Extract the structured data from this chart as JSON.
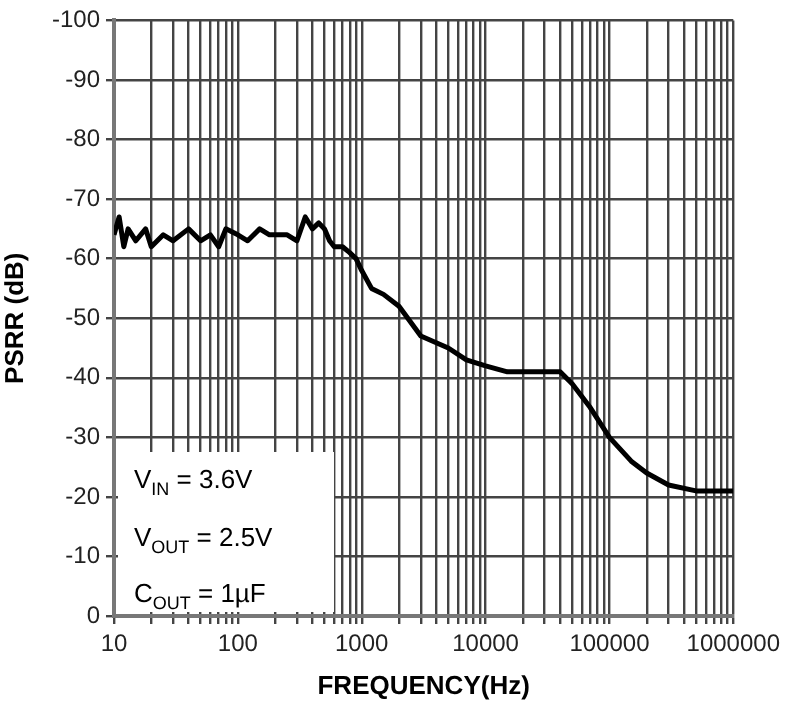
{
  "chart_data": {
    "type": "line",
    "xlabel": "FREQUENCY(Hz)",
    "ylabel": "PSRR (dB)",
    "log": "x",
    "grid": true,
    "marker": "none",
    "line_style": "solid",
    "xlim": [
      10,
      1000000
    ],
    "ylim": [
      0,
      -100
    ],
    "xticks": [
      10,
      {
        "value": 20,
        "label": null
      },
      {
        "value": 30,
        "label": null
      },
      {
        "value": 40,
        "label": null
      },
      {
        "value": 50,
        "label": null
      },
      {
        "value": 60,
        "label": null
      },
      {
        "value": 70,
        "label": null
      },
      {
        "value": 80,
        "label": null
      },
      {
        "value": 90,
        "label": null
      },
      100,
      {
        "value": 200,
        "label": null
      },
      {
        "value": 300,
        "label": null
      },
      {
        "value": 400,
        "label": null
      },
      {
        "value": 500,
        "label": null
      },
      {
        "value": 600,
        "label": null
      },
      {
        "value": 700,
        "label": null
      },
      {
        "value": 800,
        "label": null
      },
      {
        "value": 900,
        "label": null
      },
      1000,
      {
        "value": 2000,
        "label": null
      },
      {
        "value": 3000,
        "label": null
      },
      {
        "value": 4000,
        "label": null
      },
      {
        "value": 5000,
        "label": null
      },
      {
        "value": 6000,
        "label": null
      },
      {
        "value": 7000,
        "label": null
      },
      {
        "value": 8000,
        "label": null
      },
      {
        "value": 9000,
        "label": null
      },
      10000,
      {
        "value": 20000,
        "label": null
      },
      {
        "value": 30000,
        "label": null
      },
      {
        "value": 40000,
        "label": null
      },
      {
        "value": 50000,
        "label": null
      },
      {
        "value": 60000,
        "label": null
      },
      {
        "value": 70000,
        "label": null
      },
      {
        "value": 80000,
        "label": null
      },
      {
        "value": 90000,
        "label": null
      },
      100000,
      {
        "value": 200000,
        "label": null
      },
      {
        "value": 300000,
        "label": null
      },
      {
        "value": 400000,
        "label": null
      },
      {
        "value": 500000,
        "label": null
      },
      {
        "value": 600000,
        "label": null
      },
      {
        "value": 700000,
        "label": null
      },
      {
        "value": 800000,
        "label": null
      },
      {
        "value": 900000,
        "label": null
      },
      1000000
    ],
    "yticks": [
      -100,
      -90,
      -80,
      -70,
      -60,
      -50,
      -40,
      -30,
      -20,
      -10,
      0
    ],
    "x": [
      10,
      11,
      12,
      13,
      15,
      18,
      20,
      25,
      30,
      40,
      50,
      60,
      70,
      80,
      100,
      120,
      150,
      180,
      200,
      250,
      300,
      350,
      400,
      450,
      500,
      550,
      600,
      700,
      800,
      900,
      1000,
      1200,
      1500,
      2000,
      3000,
      5000,
      7000,
      10000,
      15000,
      20000,
      30000,
      40000,
      50000,
      70000,
      100000,
      150000,
      200000,
      300000,
      500000,
      1000000
    ],
    "series": [
      {
        "color": "#000000",
        "values": [
          -64,
          -67,
          -62,
          -65,
          -63,
          -65,
          -62,
          -64,
          -63,
          -65,
          -63,
          -64,
          -62,
          -65,
          -64,
          -63,
          -65,
          -64,
          -64,
          -64,
          -63,
          -67,
          -65,
          -66,
          -65,
          -63,
          -62,
          -62,
          -61,
          -60,
          -58,
          -55,
          -54,
          -52,
          -47,
          -45,
          -43,
          -42,
          -41,
          -41,
          -41,
          -41,
          -39,
          -35,
          -30,
          -26,
          -24,
          -22,
          -21,
          -21
        ]
      }
    ],
    "annotations": [
      "V$_{IN}$ = 3.6V",
      "V$_{OUT}$ = 2.5V",
      "C$_{OUT}$ = 1µF"
    ]
  }
}
